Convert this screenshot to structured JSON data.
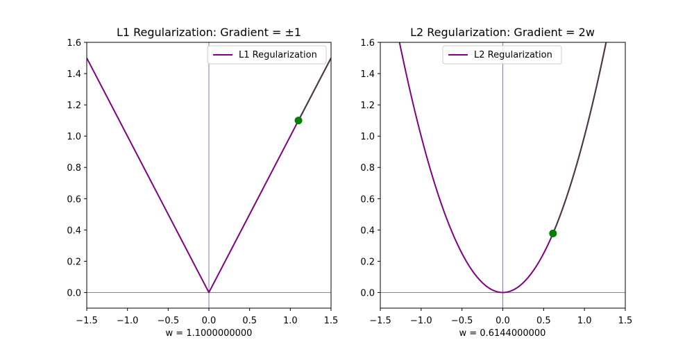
{
  "chart_data": [
    {
      "type": "line",
      "title": "L1 Regularization: Gradient = ±1",
      "xlabel": "w = 1.1000000000",
      "ylabel": "",
      "xlim": [
        -1.5,
        1.5
      ],
      "ylim": [
        -0.1,
        1.6
      ],
      "grid": false,
      "legend": "top-right",
      "function": "abs",
      "x_ticks": [
        -1.5,
        -1.0,
        -0.5,
        0.0,
        0.5,
        1.0,
        1.5
      ],
      "x_tick_labels": [
        "−1.5",
        "−1.0",
        "−0.5",
        "0.0",
        "0.5",
        "1.0",
        "1.5"
      ],
      "y_ticks": [
        0.0,
        0.2,
        0.4,
        0.6,
        0.8,
        1.0,
        1.2,
        1.4,
        1.6
      ],
      "y_tick_labels": [
        "0.0",
        "0.2",
        "0.4",
        "0.6",
        "0.8",
        "1.0",
        "1.2",
        "1.4",
        "1.6"
      ],
      "series": [
        {
          "name": "L1 Regularization",
          "color": "#800080",
          "x": [
            -1.5,
            0.0,
            1.5
          ],
          "y": [
            1.5,
            0.0,
            1.5
          ]
        }
      ],
      "tangent": {
        "color": "#404040",
        "x": [
          1.1,
          1.5
        ],
        "y": [
          1.1,
          1.5
        ]
      },
      "point": {
        "x": 1.1,
        "y": 1.1,
        "color": "#008000"
      },
      "ref_lines": {
        "color": "#5a55a8",
        "x": 0.0,
        "y": 0.0
      }
    },
    {
      "type": "line",
      "title": "L2 Regularization: Gradient = 2w",
      "xlabel": "w = 0.6144000000",
      "ylabel": "",
      "xlim": [
        -1.5,
        1.5
      ],
      "ylim": [
        -0.1,
        1.6
      ],
      "grid": false,
      "legend": "top-center",
      "function": "square",
      "x_ticks": [
        -1.5,
        -1.0,
        -0.5,
        0.0,
        0.5,
        1.0,
        1.5
      ],
      "x_tick_labels": [
        "−1.5",
        "−1.0",
        "−0.5",
        "0.0",
        "0.5",
        "1.0",
        "1.5"
      ],
      "y_ticks": [
        0.0,
        0.2,
        0.4,
        0.6,
        0.8,
        1.0,
        1.2,
        1.4,
        1.6
      ],
      "y_tick_labels": [
        "0.0",
        "0.2",
        "0.4",
        "0.6",
        "0.8",
        "1.0",
        "1.2",
        "1.4",
        "1.6"
      ],
      "series": [
        {
          "name": "L2 Regularization",
          "color": "#800080",
          "x_range": [
            -1.5,
            1.5
          ],
          "y_expr": "w^2"
        }
      ],
      "tangent": {
        "color": "#404040",
        "x_range": [
          0.6144,
          1.5
        ],
        "y_expr": "w^2"
      },
      "point": {
        "x": 0.6144,
        "y": 0.3775,
        "color": "#008000"
      },
      "ref_lines": {
        "color": "#5a55a8",
        "x": 0.0,
        "y": 0.0
      }
    }
  ]
}
